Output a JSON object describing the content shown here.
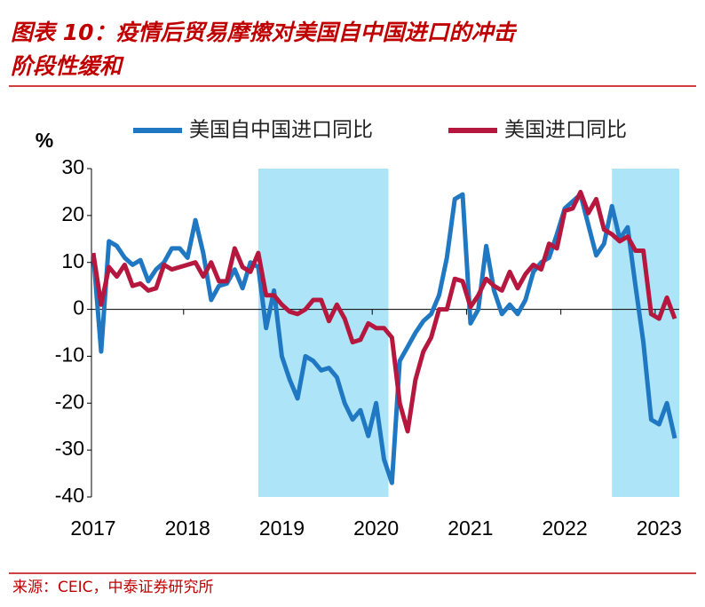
{
  "chart_data": {
    "type": "line",
    "title": [
      "图表 10：疫情后贸易摩擦对美国自中国进口的冲击",
      "阶段性缓和"
    ],
    "y_label": "%",
    "source": "来源：CEIC，中泰证券研究所",
    "categories": [
      "2017",
      null,
      null,
      null,
      null,
      null,
      null,
      null,
      null,
      null,
      null,
      null,
      "2018",
      null,
      null,
      null,
      null,
      null,
      null,
      null,
      null,
      null,
      null,
      null,
      "2019",
      null,
      null,
      null,
      null,
      null,
      null,
      null,
      null,
      null,
      null,
      null,
      "2020",
      null,
      null,
      null,
      null,
      null,
      null,
      null,
      null,
      null,
      null,
      null,
      "2021",
      null,
      null,
      null,
      null,
      null,
      null,
      null,
      null,
      null,
      null,
      null,
      "2022",
      null,
      null,
      null,
      null,
      null,
      null,
      null,
      null,
      null,
      null,
      null,
      "2023",
      null,
      null
    ],
    "series": [
      {
        "name": "美国自中国进口同比",
        "color": "#1f78c1",
        "values": [
          12,
          -9,
          14.5,
          13.5,
          11,
          9.5,
          10.5,
          6,
          8.5,
          10,
          13,
          13,
          11,
          19,
          12,
          2,
          5,
          5.5,
          8.5,
          4.5,
          10,
          9,
          -4,
          4,
          -10,
          -15,
          -19,
          -10,
          -11,
          -13,
          -12.5,
          -14.5,
          -20,
          -23.5,
          -21.5,
          -27,
          -20,
          -32,
          -37,
          -11,
          -8,
          -5,
          -2.5,
          -1,
          3,
          11,
          23.5,
          24.5,
          -3,
          0,
          13.5,
          4,
          -1,
          1,
          -1,
          2,
          8,
          10,
          11,
          16,
          21.5,
          23,
          24.5,
          18,
          11.5,
          14,
          22,
          15,
          17.5,
          5,
          -7,
          -23.5,
          -24.5,
          -20,
          -27.5
        ]
      },
      {
        "name": "美国进口同比",
        "color": "#b5173f",
        "values": [
          12,
          1,
          9,
          7,
          9.5,
          5,
          5.5,
          4,
          4.5,
          9.5,
          8.5,
          9,
          9.5,
          10,
          7,
          10,
          6,
          6,
          13,
          9,
          8,
          12,
          3,
          3,
          1,
          -0.5,
          -1,
          0,
          2,
          2,
          -2.5,
          1,
          -2,
          -7,
          -6.5,
          -3,
          -4,
          -4,
          -6,
          -20,
          -26,
          -15,
          -9,
          -6,
          0,
          0,
          6.5,
          6,
          0.5,
          3,
          6.5,
          5,
          4,
          8,
          4.5,
          7.5,
          9.5,
          8.5,
          14,
          13,
          21,
          21.5,
          25,
          20.5,
          23.5,
          17,
          16,
          14.5,
          15.5,
          12.5,
          12.5,
          -1,
          -2,
          2.5,
          -2
        ]
      }
    ],
    "shaded": [
      {
        "from": 21,
        "to": 37
      },
      {
        "from": 66,
        "to": 74
      }
    ],
    "shade_color": "#aee4f7",
    "ylim": [
      -40,
      30
    ],
    "yticks": [
      -40,
      -30,
      -20,
      -10,
      0,
      10,
      20,
      30
    ]
  }
}
